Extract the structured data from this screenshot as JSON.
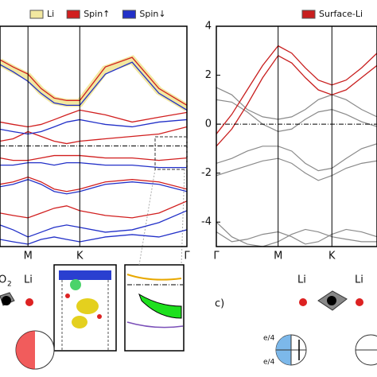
{
  "chart_data": [
    {
      "type": "line",
      "x": [
        0.53,
        0.75,
        1,
        1.22,
        1.44,
        1.65,
        1.87,
        2.3,
        2.75,
        3.2,
        3.67
      ],
      "xlim": [
        0.53,
        3.67
      ],
      "xticks": [
        {
          "value": 1,
          "label": "M"
        },
        {
          "value": 1.87,
          "label": "K"
        },
        {
          "value": 3.67,
          "label": "Γ"
        }
      ],
      "ylim": [
        -4.2,
        5
      ],
      "fermi_level": 0,
      "series": [
        {
          "name": "Li",
          "color": "#f2e8a0",
          "values": [
            [
              3.5,
              3.2,
              2.9,
              2.3,
              1.9,
              1.8,
              1.8,
              3.2,
              3.6,
              2.3,
              1.6
            ]
          ]
        },
        {
          "name": "Spin↑",
          "color": "#d11f1f",
          "values": [
            [
              3.6,
              3.3,
              3.0,
              2.4,
              2.0,
              1.9,
              1.9,
              3.3,
              3.7,
              2.4,
              1.7
            ],
            [
              1.0,
              0.9,
              0.8,
              0.9,
              1.1,
              1.3,
              1.5,
              1.3,
              1.0,
              1.2,
              1.4
            ],
            [
              0.2,
              0.3,
              0.6,
              0.4,
              0.2,
              0.1,
              0.2,
              0.3,
              0.4,
              0.5,
              0.8
            ],
            [
              -0.5,
              -0.6,
              -0.6,
              -0.5,
              -0.4,
              -0.4,
              -0.4,
              -0.5,
              -0.5,
              -0.6,
              -0.5
            ],
            [
              -1.6,
              -1.5,
              -1.3,
              -1.5,
              -1.8,
              -1.9,
              -1.8,
              -1.5,
              -1.4,
              -1.5,
              -1.8
            ],
            [
              -2.8,
              -2.9,
              -3.0,
              -2.8,
              -2.6,
              -2.5,
              -2.7,
              -2.9,
              -3.0,
              -2.8,
              -2.3
            ]
          ]
        },
        {
          "name": "Spin↓",
          "color": "#2230c8",
          "values": [
            [
              3.4,
              3.1,
              2.7,
              2.2,
              1.8,
              1.7,
              1.7,
              3.0,
              3.5,
              2.2,
              1.5
            ],
            [
              0.7,
              0.6,
              0.5,
              0.6,
              0.8,
              1.0,
              1.1,
              0.9,
              0.8,
              1.0,
              1.1
            ],
            [
              -0.8,
              -0.8,
              -0.7,
              -0.7,
              -0.8,
              -0.7,
              -0.7,
              -0.8,
              -0.8,
              -0.9,
              -0.9
            ],
            [
              -1.7,
              -1.6,
              -1.4,
              -1.6,
              -1.9,
              -2.0,
              -1.9,
              -1.6,
              -1.5,
              -1.6,
              -1.9
            ],
            [
              -3.3,
              -3.5,
              -3.8,
              -3.6,
              -3.4,
              -3.3,
              -3.4,
              -3.6,
              -3.5,
              -3.2,
              -2.7
            ],
            [
              -3.9,
              -4.0,
              -4.1,
              -3.9,
              -3.8,
              -3.9,
              -4.0,
              -3.8,
              -3.7,
              -3.8,
              -3.5
            ]
          ]
        }
      ]
    },
    {
      "type": "line",
      "x": [
        0,
        0.25,
        0.5,
        0.75,
        1,
        1.22,
        1.44,
        1.65,
        1.87,
        2.1,
        2.35,
        2.6
      ],
      "xlim": [
        0,
        2.6
      ],
      "xticks": [
        {
          "value": 0,
          "label": "Γ"
        },
        {
          "value": 1,
          "label": "M"
        },
        {
          "value": 1.87,
          "label": "K"
        }
      ],
      "ylim": [
        -5,
        4
      ],
      "yticks": [
        4,
        2,
        0,
        -2,
        -4
      ],
      "fermi_level": 0,
      "series": [
        {
          "name": "Surface-Li",
          "color": "#c81e1e",
          "values": [
            [
              -0.4,
              0.4,
              1.4,
              2.4,
              3.2,
              2.9,
              2.3,
              1.8,
              1.6,
              1.8,
              2.3,
              2.9
            ],
            [
              -0.9,
              -0.2,
              0.8,
              1.9,
              2.8,
              2.5,
              1.9,
              1.4,
              1.2,
              1.4,
              1.9,
              2.4
            ]
          ]
        }
      ],
      "other_bands": {
        "color": "#8a8a8a",
        "values": [
          [
            1.5,
            1.2,
            0.6,
            0.3,
            0.2,
            0.3,
            0.6,
            1.0,
            1.2,
            1.0,
            0.6,
            0.3
          ],
          [
            1.0,
            0.9,
            0.5,
            0.0,
            -0.3,
            -0.2,
            0.2,
            0.5,
            0.6,
            0.4,
            0.1,
            -0.1
          ],
          [
            -1.6,
            -1.4,
            -1.1,
            -0.9,
            -0.9,
            -1.1,
            -1.6,
            -1.9,
            -1.8,
            -1.4,
            -1.0,
            -0.8
          ],
          [
            -2.1,
            -1.9,
            -1.7,
            -1.5,
            -1.4,
            -1.6,
            -2.0,
            -2.3,
            -2.1,
            -1.8,
            -1.6,
            -1.5
          ],
          [
            -4.0,
            -4.6,
            -4.9,
            -5.0,
            -4.8,
            -4.5,
            -4.3,
            -4.4,
            -4.6,
            -4.7,
            -4.8,
            -4.8
          ],
          [
            -4.4,
            -4.8,
            -4.7,
            -4.5,
            -4.4,
            -4.6,
            -4.9,
            -4.8,
            -4.5,
            -4.3,
            -4.4,
            -4.6
          ]
        ]
      }
    }
  ],
  "annotations": {
    "o2": "O",
    "o2_sub": "2",
    "li_left": "Li",
    "panel_c": "c)",
    "li_c1": "Li",
    "li_c2": "Li",
    "e_top": "e/4",
    "e_bottom": "e/4"
  }
}
